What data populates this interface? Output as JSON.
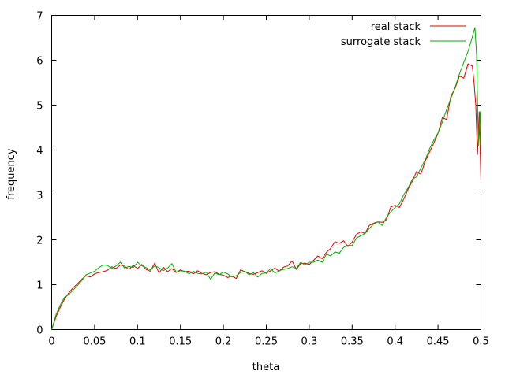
{
  "chart_data": {
    "type": "line",
    "title": "",
    "xlabel": "theta",
    "ylabel": "frequency",
    "xlim": [
      0,
      0.5
    ],
    "ylim": [
      0,
      7
    ],
    "xticks": [
      0,
      0.05,
      0.1,
      0.15,
      0.2,
      0.25,
      0.3,
      0.35,
      0.4,
      0.45,
      0.5
    ],
    "xtick_labels": [
      "0",
      "0.05",
      "0.1",
      "0.15",
      "0.2",
      "0.25",
      "0.3",
      "0.35",
      "0.4",
      "0.45",
      "0.5"
    ],
    "yticks": [
      0,
      1,
      2,
      3,
      4,
      5,
      6,
      7
    ],
    "ytick_labels": [
      "0",
      "1",
      "2",
      "3",
      "4",
      "5",
      "6",
      "7"
    ],
    "grid": false,
    "legend_position": "top-right",
    "series": [
      {
        "name": "real stack",
        "color": "#e00000",
        "points": [
          [
            0,
            0
          ],
          [
            0.005,
            0.28
          ],
          [
            0.01,
            0.5
          ],
          [
            0.015,
            0.68
          ],
          [
            0.02,
            0.82
          ],
          [
            0.025,
            0.93
          ],
          [
            0.03,
            1.02
          ],
          [
            0.035,
            1.12
          ],
          [
            0.04,
            1.2
          ],
          [
            0.045,
            1.17
          ],
          [
            0.05,
            1.24
          ],
          [
            0.055,
            1.27
          ],
          [
            0.06,
            1.29
          ],
          [
            0.065,
            1.32
          ],
          [
            0.07,
            1.4
          ],
          [
            0.075,
            1.36
          ],
          [
            0.08,
            1.44
          ],
          [
            0.085,
            1.41
          ],
          [
            0.09,
            1.34
          ],
          [
            0.095,
            1.43
          ],
          [
            0.1,
            1.36
          ],
          [
            0.105,
            1.45
          ],
          [
            0.11,
            1.34
          ],
          [
            0.115,
            1.3
          ],
          [
            0.12,
            1.48
          ],
          [
            0.125,
            1.26
          ],
          [
            0.13,
            1.39
          ],
          [
            0.135,
            1.29
          ],
          [
            0.14,
            1.36
          ],
          [
            0.145,
            1.27
          ],
          [
            0.15,
            1.33
          ],
          [
            0.155,
            1.29
          ],
          [
            0.16,
            1.3
          ],
          [
            0.165,
            1.24
          ],
          [
            0.17,
            1.31
          ],
          [
            0.175,
            1.25
          ],
          [
            0.18,
            1.22
          ],
          [
            0.185,
            1.27
          ],
          [
            0.19,
            1.29
          ],
          [
            0.195,
            1.23
          ],
          [
            0.2,
            1.21
          ],
          [
            0.205,
            1.16
          ],
          [
            0.21,
            1.19
          ],
          [
            0.215,
            1.14
          ],
          [
            0.22,
            1.33
          ],
          [
            0.225,
            1.29
          ],
          [
            0.23,
            1.25
          ],
          [
            0.235,
            1.23
          ],
          [
            0.24,
            1.27
          ],
          [
            0.245,
            1.31
          ],
          [
            0.25,
            1.25
          ],
          [
            0.255,
            1.31
          ],
          [
            0.26,
            1.37
          ],
          [
            0.265,
            1.3
          ],
          [
            0.27,
            1.39
          ],
          [
            0.275,
            1.42
          ],
          [
            0.28,
            1.53
          ],
          [
            0.285,
            1.34
          ],
          [
            0.29,
            1.47
          ],
          [
            0.295,
            1.48
          ],
          [
            0.3,
            1.45
          ],
          [
            0.305,
            1.54
          ],
          [
            0.31,
            1.64
          ],
          [
            0.315,
            1.58
          ],
          [
            0.32,
            1.72
          ],
          [
            0.325,
            1.81
          ],
          [
            0.33,
            1.96
          ],
          [
            0.335,
            1.92
          ],
          [
            0.34,
            1.98
          ],
          [
            0.345,
            1.85
          ],
          [
            0.35,
            1.95
          ],
          [
            0.355,
            2.12
          ],
          [
            0.36,
            2.18
          ],
          [
            0.365,
            2.14
          ],
          [
            0.37,
            2.32
          ],
          [
            0.375,
            2.37
          ],
          [
            0.38,
            2.4
          ],
          [
            0.385,
            2.39
          ],
          [
            0.39,
            2.45
          ],
          [
            0.395,
            2.73
          ],
          [
            0.4,
            2.77
          ],
          [
            0.405,
            2.72
          ],
          [
            0.41,
            2.9
          ],
          [
            0.415,
            3.12
          ],
          [
            0.42,
            3.3
          ],
          [
            0.425,
            3.52
          ],
          [
            0.43,
            3.46
          ],
          [
            0.435,
            3.75
          ],
          [
            0.44,
            3.95
          ],
          [
            0.445,
            4.15
          ],
          [
            0.45,
            4.37
          ],
          [
            0.455,
            4.72
          ],
          [
            0.46,
            4.68
          ],
          [
            0.465,
            5.2
          ],
          [
            0.47,
            5.38
          ],
          [
            0.475,
            5.65
          ],
          [
            0.48,
            5.6
          ],
          [
            0.485,
            5.92
          ],
          [
            0.49,
            5.87
          ],
          [
            0.492,
            5.5
          ],
          [
            0.494,
            5.0
          ],
          [
            0.496,
            3.9
          ],
          [
            0.498,
            4.85
          ],
          [
            0.5,
            3.28
          ]
        ]
      },
      {
        "name": "surrogate stack",
        "color": "#00b000",
        "points": [
          [
            0,
            0
          ],
          [
            0.005,
            0.33
          ],
          [
            0.01,
            0.55
          ],
          [
            0.015,
            0.72
          ],
          [
            0.02,
            0.78
          ],
          [
            0.025,
            0.88
          ],
          [
            0.03,
            0.98
          ],
          [
            0.035,
            1.09
          ],
          [
            0.04,
            1.22
          ],
          [
            0.045,
            1.26
          ],
          [
            0.05,
            1.3
          ],
          [
            0.055,
            1.38
          ],
          [
            0.06,
            1.44
          ],
          [
            0.065,
            1.43
          ],
          [
            0.07,
            1.36
          ],
          [
            0.075,
            1.42
          ],
          [
            0.08,
            1.5
          ],
          [
            0.085,
            1.37
          ],
          [
            0.09,
            1.41
          ],
          [
            0.095,
            1.38
          ],
          [
            0.1,
            1.5
          ],
          [
            0.105,
            1.42
          ],
          [
            0.11,
            1.38
          ],
          [
            0.115,
            1.33
          ],
          [
            0.12,
            1.42
          ],
          [
            0.125,
            1.38
          ],
          [
            0.13,
            1.31
          ],
          [
            0.135,
            1.37
          ],
          [
            0.14,
            1.47
          ],
          [
            0.145,
            1.28
          ],
          [
            0.15,
            1.31
          ],
          [
            0.155,
            1.3
          ],
          [
            0.16,
            1.24
          ],
          [
            0.165,
            1.3
          ],
          [
            0.17,
            1.25
          ],
          [
            0.175,
            1.24
          ],
          [
            0.18,
            1.28
          ],
          [
            0.185,
            1.12
          ],
          [
            0.19,
            1.26
          ],
          [
            0.195,
            1.22
          ],
          [
            0.2,
            1.28
          ],
          [
            0.205,
            1.24
          ],
          [
            0.21,
            1.17
          ],
          [
            0.215,
            1.2
          ],
          [
            0.22,
            1.27
          ],
          [
            0.225,
            1.3
          ],
          [
            0.23,
            1.22
          ],
          [
            0.235,
            1.27
          ],
          [
            0.24,
            1.17
          ],
          [
            0.245,
            1.25
          ],
          [
            0.25,
            1.26
          ],
          [
            0.255,
            1.36
          ],
          [
            0.26,
            1.26
          ],
          [
            0.265,
            1.31
          ],
          [
            0.27,
            1.34
          ],
          [
            0.275,
            1.36
          ],
          [
            0.28,
            1.4
          ],
          [
            0.285,
            1.36
          ],
          [
            0.29,
            1.5
          ],
          [
            0.295,
            1.44
          ],
          [
            0.3,
            1.5
          ],
          [
            0.305,
            1.5
          ],
          [
            0.31,
            1.55
          ],
          [
            0.315,
            1.5
          ],
          [
            0.32,
            1.68
          ],
          [
            0.325,
            1.64
          ],
          [
            0.33,
            1.73
          ],
          [
            0.335,
            1.7
          ],
          [
            0.34,
            1.83
          ],
          [
            0.345,
            1.88
          ],
          [
            0.35,
            1.87
          ],
          [
            0.355,
            2.04
          ],
          [
            0.36,
            2.09
          ],
          [
            0.365,
            2.14
          ],
          [
            0.37,
            2.25
          ],
          [
            0.375,
            2.35
          ],
          [
            0.38,
            2.4
          ],
          [
            0.385,
            2.32
          ],
          [
            0.39,
            2.5
          ],
          [
            0.395,
            2.62
          ],
          [
            0.4,
            2.72
          ],
          [
            0.405,
            2.8
          ],
          [
            0.41,
            3.0
          ],
          [
            0.415,
            3.15
          ],
          [
            0.42,
            3.35
          ],
          [
            0.425,
            3.4
          ],
          [
            0.43,
            3.6
          ],
          [
            0.435,
            3.78
          ],
          [
            0.44,
            4.02
          ],
          [
            0.445,
            4.22
          ],
          [
            0.45,
            4.38
          ],
          [
            0.455,
            4.62
          ],
          [
            0.46,
            4.9
          ],
          [
            0.465,
            5.15
          ],
          [
            0.47,
            5.4
          ],
          [
            0.475,
            5.7
          ],
          [
            0.48,
            5.95
          ],
          [
            0.485,
            6.2
          ],
          [
            0.49,
            6.52
          ],
          [
            0.493,
            6.73
          ],
          [
            0.495,
            6.1
          ],
          [
            0.497,
            4.1
          ],
          [
            0.499,
            4.85
          ],
          [
            0.5,
            3.95
          ]
        ]
      }
    ]
  }
}
